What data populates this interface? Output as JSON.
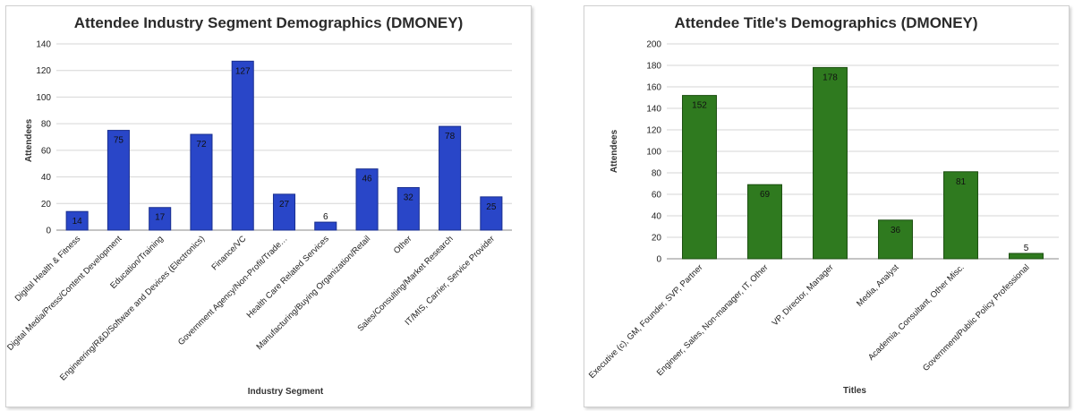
{
  "chart_data": [
    {
      "type": "bar",
      "title": "Attendee Industry Segment Demographics (DMONEY)",
      "xlabel": "Industry Segment",
      "ylabel": "Attendees",
      "ylim": [
        0,
        140
      ],
      "yticks": [
        0,
        20,
        40,
        60,
        80,
        100,
        120,
        140
      ],
      "grid": true,
      "bar_color": "#2946c8",
      "bar_edge": "#1a2f8f",
      "categories": [
        "Digital Health & Fitness",
        "Digital Media/Press/Content Development",
        "Education/Training",
        "Engineering/R&D/Software and Devices (Electronics)",
        "Finance/VC",
        "Government Agency/Non-Profit/Trade…",
        "Health Care Related Services",
        "Manufacturing/Buying Organization/Retail",
        "Other",
        "Sales/Consulting/Market Research",
        "IT/MIS, Carrier, Service Provider"
      ],
      "values": [
        14,
        75,
        17,
        72,
        127,
        27,
        6,
        46,
        32,
        78,
        25
      ],
      "data_labels": [
        "14",
        "75",
        "17",
        "72",
        "127",
        "27",
        "6",
        "46",
        "32",
        "78",
        "25"
      ]
    },
    {
      "type": "bar",
      "title": "Attendee Title's Demographics (DMONEY)",
      "xlabel": "Titles",
      "ylabel": "Attendees",
      "ylim": [
        0,
        200
      ],
      "yticks": [
        0,
        20,
        40,
        60,
        80,
        100,
        120,
        140,
        160,
        180,
        200
      ],
      "grid": true,
      "bar_color": "#2f7a1f",
      "bar_edge": "#1b4e10",
      "categories": [
        "Executive (c), GM, Founder, SVP, Partner",
        "Engineer, Sales, Non-manager, IT, Other",
        "VP, Director, Manager",
        "Media, Analyst",
        "Academia, Consultant, Other Misc.",
        "Government/Public Policy Professional"
      ],
      "values": [
        152,
        69,
        178,
        36,
        81,
        5
      ],
      "data_labels": [
        "152",
        "69",
        "178",
        "36",
        "81",
        "5"
      ]
    }
  ]
}
